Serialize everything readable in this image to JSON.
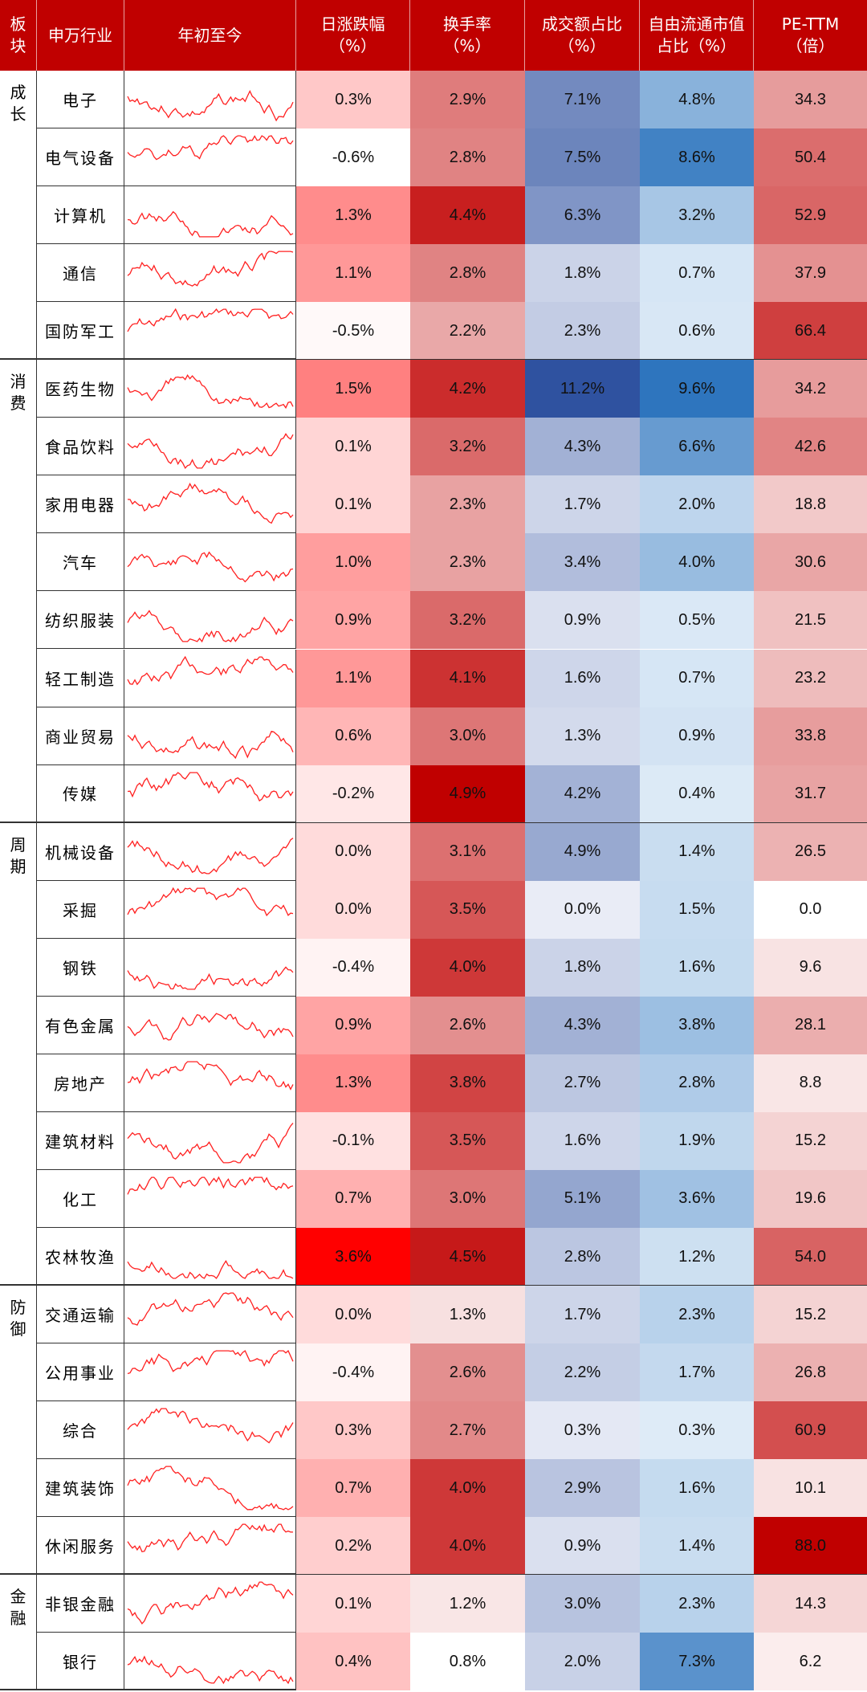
{
  "headers": {
    "sector": [
      "板",
      "块"
    ],
    "industry": "申万行业",
    "ytd": "年初至今",
    "daily_change": [
      "日涨跌幅",
      "（%）"
    ],
    "turnover": [
      "换手率",
      "（%）"
    ],
    "volume_share": [
      "成交额占比",
      "（%）"
    ],
    "float_cap_share": [
      "自由流通市值",
      "占比（%）"
    ],
    "pe_ttm": [
      "PE-TTM",
      "（倍）"
    ]
  },
  "colors": {
    "header_bg": "#c00000",
    "red_scale_max": "#c00000",
    "blue_scale_max": "#2f52a0"
  },
  "groups": [
    {
      "name": [
        "成",
        "长"
      ],
      "rows": [
        {
          "name": "电子",
          "daily": "0.3%",
          "turnover": "2.9%",
          "vol": "7.1%",
          "cap": "4.8%",
          "pe": "34.3",
          "d": 0.3,
          "t": 2.9,
          "v": 7.1,
          "c": 4.8,
          "p": 34.3
        },
        {
          "name": "电气设备",
          "daily": "-0.6%",
          "turnover": "2.8%",
          "vol": "7.5%",
          "cap": "8.6%",
          "pe": "50.4",
          "d": -0.6,
          "t": 2.8,
          "v": 7.5,
          "c": 8.6,
          "p": 50.4
        },
        {
          "name": "计算机",
          "daily": "1.3%",
          "turnover": "4.4%",
          "vol": "6.3%",
          "cap": "3.2%",
          "pe": "52.9",
          "d": 1.3,
          "t": 4.4,
          "v": 6.3,
          "c": 3.2,
          "p": 52.9
        },
        {
          "name": "通信",
          "daily": "1.1%",
          "turnover": "2.8%",
          "vol": "1.8%",
          "cap": "0.7%",
          "pe": "37.9",
          "d": 1.1,
          "t": 2.8,
          "v": 1.8,
          "c": 0.7,
          "p": 37.9
        },
        {
          "name": "国防军工",
          "daily": "-0.5%",
          "turnover": "2.2%",
          "vol": "2.3%",
          "cap": "0.6%",
          "pe": "66.4",
          "d": -0.5,
          "t": 2.2,
          "v": 2.3,
          "c": 0.6,
          "p": 66.4
        }
      ]
    },
    {
      "name": [
        "消",
        "费"
      ],
      "rows": [
        {
          "name": "医药生物",
          "daily": "1.5%",
          "turnover": "4.2%",
          "vol": "11.2%",
          "cap": "9.6%",
          "pe": "34.2",
          "d": 1.5,
          "t": 4.2,
          "v": 11.2,
          "c": 9.6,
          "p": 34.2
        },
        {
          "name": "食品饮料",
          "daily": "0.1%",
          "turnover": "3.2%",
          "vol": "4.3%",
          "cap": "6.6%",
          "pe": "42.6",
          "d": 0.1,
          "t": 3.2,
          "v": 4.3,
          "c": 6.6,
          "p": 42.6
        },
        {
          "name": "家用电器",
          "daily": "0.1%",
          "turnover": "2.3%",
          "vol": "1.7%",
          "cap": "2.0%",
          "pe": "18.8",
          "d": 0.1,
          "t": 2.3,
          "v": 1.7,
          "c": 2.0,
          "p": 18.8
        },
        {
          "name": "汽车",
          "daily": "1.0%",
          "turnover": "2.3%",
          "vol": "3.4%",
          "cap": "4.0%",
          "pe": "30.6",
          "d": 1.0,
          "t": 2.3,
          "v": 3.4,
          "c": 4.0,
          "p": 30.6
        },
        {
          "name": "纺织服装",
          "daily": "0.9%",
          "turnover": "3.2%",
          "vol": "0.9%",
          "cap": "0.5%",
          "pe": "21.5",
          "d": 0.9,
          "t": 3.2,
          "v": 0.9,
          "c": 0.5,
          "p": 21.5
        },
        {
          "name": "轻工制造",
          "daily": "1.1%",
          "turnover": "4.1%",
          "vol": "1.6%",
          "cap": "0.7%",
          "pe": "23.2",
          "d": 1.1,
          "t": 4.1,
          "v": 1.6,
          "c": 0.7,
          "p": 23.2
        },
        {
          "name": "商业贸易",
          "daily": "0.6%",
          "turnover": "3.0%",
          "vol": "1.3%",
          "cap": "0.9%",
          "pe": "33.8",
          "d": 0.6,
          "t": 3.0,
          "v": 1.3,
          "c": 0.9,
          "p": 33.8
        },
        {
          "name": "传媒",
          "daily": "-0.2%",
          "turnover": "4.9%",
          "vol": "4.2%",
          "cap": "0.4%",
          "pe": "31.7",
          "d": -0.2,
          "t": 4.9,
          "v": 4.2,
          "c": 0.4,
          "p": 31.7
        }
      ]
    },
    {
      "name": [
        "周",
        "期"
      ],
      "rows": [
        {
          "name": "机械设备",
          "daily": "0.0%",
          "turnover": "3.1%",
          "vol": "4.9%",
          "cap": "1.4%",
          "pe": "26.5",
          "d": 0.0,
          "t": 3.1,
          "v": 4.9,
          "c": 1.4,
          "p": 26.5
        },
        {
          "name": "采掘",
          "daily": "0.0%",
          "turnover": "3.5%",
          "vol": "0.0%",
          "cap": "1.5%",
          "pe": "0.0",
          "d": 0.0,
          "t": 3.5,
          "v": 0.0,
          "c": 1.5,
          "p": 0.0
        },
        {
          "name": "钢铁",
          "daily": "-0.4%",
          "turnover": "4.0%",
          "vol": "1.8%",
          "cap": "1.6%",
          "pe": "9.6",
          "d": -0.4,
          "t": 4.0,
          "v": 1.8,
          "c": 1.6,
          "p": 9.6
        },
        {
          "name": "有色金属",
          "daily": "0.9%",
          "turnover": "2.6%",
          "vol": "4.3%",
          "cap": "3.8%",
          "pe": "28.1",
          "d": 0.9,
          "t": 2.6,
          "v": 4.3,
          "c": 3.8,
          "p": 28.1
        },
        {
          "name": "房地产",
          "daily": "1.3%",
          "turnover": "3.8%",
          "vol": "2.7%",
          "cap": "2.8%",
          "pe": "8.8",
          "d": 1.3,
          "t": 3.8,
          "v": 2.7,
          "c": 2.8,
          "p": 8.8
        },
        {
          "name": "建筑材料",
          "daily": "-0.1%",
          "turnover": "3.5%",
          "vol": "1.6%",
          "cap": "1.9%",
          "pe": "15.2",
          "d": -0.1,
          "t": 3.5,
          "v": 1.6,
          "c": 1.9,
          "p": 15.2
        },
        {
          "name": "化工",
          "daily": "0.7%",
          "turnover": "3.0%",
          "vol": "5.1%",
          "cap": "3.6%",
          "pe": "19.6",
          "d": 0.7,
          "t": 3.0,
          "v": 5.1,
          "c": 3.6,
          "p": 19.6
        },
        {
          "name": "农林牧渔",
          "daily": "3.6%",
          "turnover": "4.5%",
          "vol": "2.8%",
          "cap": "1.2%",
          "pe": "54.0",
          "d": 3.6,
          "t": 4.5,
          "v": 2.8,
          "c": 1.2,
          "p": 54.0
        }
      ]
    },
    {
      "name": [
        "防",
        "御"
      ],
      "rows": [
        {
          "name": "交通运输",
          "daily": "0.0%",
          "turnover": "1.3%",
          "vol": "1.7%",
          "cap": "2.3%",
          "pe": "15.2",
          "d": 0.0,
          "t": 1.3,
          "v": 1.7,
          "c": 2.3,
          "p": 15.2
        },
        {
          "name": "公用事业",
          "daily": "-0.4%",
          "turnover": "2.6%",
          "vol": "2.2%",
          "cap": "1.7%",
          "pe": "26.8",
          "d": -0.4,
          "t": 2.6,
          "v": 2.2,
          "c": 1.7,
          "p": 26.8
        },
        {
          "name": "综合",
          "daily": "0.3%",
          "turnover": "2.7%",
          "vol": "0.3%",
          "cap": "0.3%",
          "pe": "60.9",
          "d": 0.3,
          "t": 2.7,
          "v": 0.3,
          "c": 0.3,
          "p": 60.9
        },
        {
          "name": "建筑装饰",
          "daily": "0.7%",
          "turnover": "4.0%",
          "vol": "2.9%",
          "cap": "1.6%",
          "pe": "10.1",
          "d": 0.7,
          "t": 4.0,
          "v": 2.9,
          "c": 1.6,
          "p": 10.1
        },
        {
          "name": "休闲服务",
          "daily": "0.2%",
          "turnover": "4.0%",
          "vol": "0.9%",
          "cap": "1.4%",
          "pe": "88.0",
          "d": 0.2,
          "t": 4.0,
          "v": 0.9,
          "c": 1.4,
          "p": 88.0
        }
      ]
    },
    {
      "name": [
        "金",
        "融"
      ],
      "rows": [
        {
          "name": "非银金融",
          "daily": "0.1%",
          "turnover": "1.2%",
          "vol": "3.0%",
          "cap": "2.3%",
          "pe": "14.3",
          "d": 0.1,
          "t": 1.2,
          "v": 3.0,
          "c": 2.3,
          "p": 14.3
        },
        {
          "name": "银行",
          "daily": "0.4%",
          "turnover": "0.8%",
          "vol": "2.0%",
          "cap": "7.3%",
          "pe": "6.2",
          "d": 0.4,
          "t": 0.8,
          "v": 2.0,
          "c": 7.3,
          "p": 6.2
        }
      ]
    }
  ]
}
